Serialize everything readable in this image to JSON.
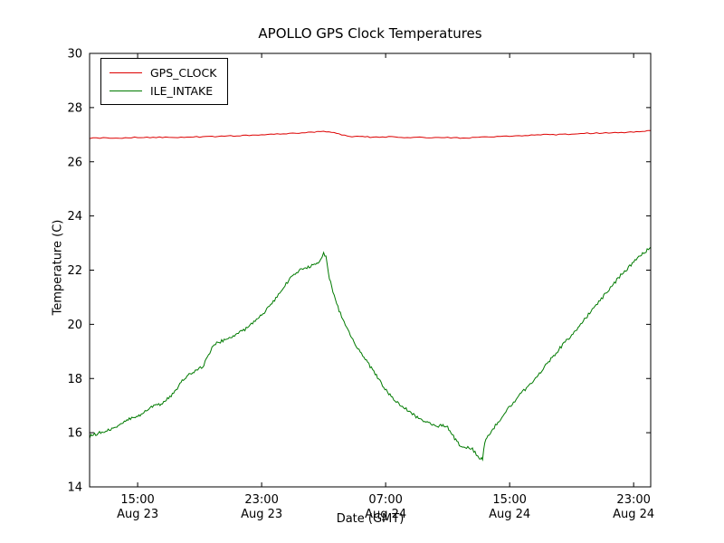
{
  "title": "APOLLO GPS Clock Temperatures",
  "chart_data": {
    "type": "line",
    "title": "APOLLO GPS Clock Temperatures",
    "xlabel": "Date (GMT)",
    "ylabel": "Temperature (C)",
    "ylim": [
      14,
      30
    ],
    "xlim_hours": [
      11.9,
      48.1
    ],
    "x_unit": "hours since Aug 23 00:00 GMT",
    "grid": false,
    "legend_position": "upper left",
    "y_ticks": [
      14,
      16,
      18,
      20,
      22,
      24,
      26,
      28,
      30
    ],
    "x_ticks": [
      {
        "hours": 15,
        "line1": "15:00",
        "line2": "Aug 23"
      },
      {
        "hours": 23,
        "line1": "23:00",
        "line2": "Aug 23"
      },
      {
        "hours": 31,
        "line1": "07:00",
        "line2": "Aug 24"
      },
      {
        "hours": 39,
        "line1": "15:00",
        "line2": "Aug 24"
      },
      {
        "hours": 47,
        "line1": "23:00",
        "line2": "Aug 24"
      }
    ],
    "noise_amplitude": [
      0.018,
      0.06
    ],
    "series": [
      {
        "name": "GPS_CLOCK",
        "color": "#dd0000",
        "points": [
          [
            11.9,
            26.87
          ],
          [
            13,
            26.88
          ],
          [
            14,
            26.88
          ],
          [
            15,
            26.9
          ],
          [
            16,
            26.9
          ],
          [
            17,
            26.9
          ],
          [
            18,
            26.9
          ],
          [
            19,
            26.92
          ],
          [
            20,
            26.93
          ],
          [
            21,
            26.95
          ],
          [
            22,
            26.97
          ],
          [
            23,
            27.0
          ],
          [
            24,
            27.02
          ],
          [
            25,
            27.05
          ],
          [
            26,
            27.08
          ],
          [
            27,
            27.12
          ],
          [
            27.5,
            27.1
          ],
          [
            28,
            27.02
          ],
          [
            28.5,
            26.95
          ],
          [
            29,
            26.93
          ],
          [
            29.5,
            26.95
          ],
          [
            30,
            26.9
          ],
          [
            31,
            26.92
          ],
          [
            32,
            26.9
          ],
          [
            33,
            26.9
          ],
          [
            34,
            26.88
          ],
          [
            35,
            26.9
          ],
          [
            36,
            26.87
          ],
          [
            37,
            26.9
          ],
          [
            38,
            26.92
          ],
          [
            39,
            26.95
          ],
          [
            40,
            26.97
          ],
          [
            41,
            27.0
          ],
          [
            42,
            27.0
          ],
          [
            43,
            27.02
          ],
          [
            44,
            27.05
          ],
          [
            45,
            27.06
          ],
          [
            46,
            27.08
          ],
          [
            47,
            27.1
          ],
          [
            48.1,
            27.15
          ]
        ]
      },
      {
        "name": "ILE_INTAKE",
        "color": "#007a00",
        "points": [
          [
            11.9,
            15.85
          ],
          [
            12.3,
            15.95
          ],
          [
            12.7,
            16.05
          ],
          [
            13.1,
            16.1
          ],
          [
            13.5,
            16.2
          ],
          [
            13.9,
            16.3
          ],
          [
            14.3,
            16.45
          ],
          [
            14.7,
            16.55
          ],
          [
            15.0,
            16.6
          ],
          [
            15.4,
            16.75
          ],
          [
            15.8,
            16.9
          ],
          [
            16.2,
            17.0
          ],
          [
            16.6,
            17.1
          ],
          [
            17.0,
            17.3
          ],
          [
            17.4,
            17.5
          ],
          [
            17.8,
            17.85
          ],
          [
            18.1,
            18.05
          ],
          [
            18.4,
            18.2
          ],
          [
            18.8,
            18.3
          ],
          [
            19.2,
            18.45
          ],
          [
            19.5,
            18.75
          ],
          [
            19.8,
            19.15
          ],
          [
            20.1,
            19.3
          ],
          [
            20.5,
            19.4
          ],
          [
            21.0,
            19.5
          ],
          [
            21.5,
            19.65
          ],
          [
            22.0,
            19.85
          ],
          [
            22.5,
            20.1
          ],
          [
            23.0,
            20.35
          ],
          [
            23.5,
            20.65
          ],
          [
            24.0,
            21.0
          ],
          [
            24.5,
            21.45
          ],
          [
            25.0,
            21.8
          ],
          [
            25.5,
            22.0
          ],
          [
            26.0,
            22.1
          ],
          [
            26.4,
            22.2
          ],
          [
            26.8,
            22.35
          ],
          [
            27.0,
            22.6
          ],
          [
            27.15,
            22.5
          ],
          [
            27.3,
            21.9
          ],
          [
            27.6,
            21.2
          ],
          [
            28.0,
            20.5
          ],
          [
            28.4,
            19.95
          ],
          [
            28.8,
            19.5
          ],
          [
            29.2,
            19.1
          ],
          [
            29.6,
            18.75
          ],
          [
            30.0,
            18.45
          ],
          [
            30.4,
            18.1
          ],
          [
            30.8,
            17.75
          ],
          [
            31.2,
            17.45
          ],
          [
            31.6,
            17.2
          ],
          [
            32.0,
            17.0
          ],
          [
            32.4,
            16.85
          ],
          [
            32.8,
            16.65
          ],
          [
            33.2,
            16.5
          ],
          [
            33.6,
            16.4
          ],
          [
            34.0,
            16.3
          ],
          [
            34.4,
            16.25
          ],
          [
            34.7,
            16.3
          ],
          [
            35.0,
            16.2
          ],
          [
            35.3,
            15.95
          ],
          [
            35.6,
            15.65
          ],
          [
            35.9,
            15.5
          ],
          [
            36.3,
            15.45
          ],
          [
            36.6,
            15.4
          ],
          [
            36.85,
            15.2
          ],
          [
            37.05,
            15.0
          ],
          [
            37.25,
            15.05
          ],
          [
            37.4,
            15.6
          ],
          [
            37.6,
            15.9
          ],
          [
            38.0,
            16.2
          ],
          [
            38.5,
            16.55
          ],
          [
            39.0,
            16.95
          ],
          [
            39.5,
            17.3
          ],
          [
            40.0,
            17.6
          ],
          [
            40.5,
            17.9
          ],
          [
            41.0,
            18.25
          ],
          [
            41.5,
            18.6
          ],
          [
            42.0,
            18.95
          ],
          [
            42.5,
            19.3
          ],
          [
            43.0,
            19.6
          ],
          [
            43.5,
            19.95
          ],
          [
            44.0,
            20.3
          ],
          [
            44.5,
            20.65
          ],
          [
            45.0,
            21.0
          ],
          [
            45.5,
            21.35
          ],
          [
            46.0,
            21.7
          ],
          [
            46.5,
            22.0
          ],
          [
            47.0,
            22.3
          ],
          [
            47.5,
            22.55
          ],
          [
            48.1,
            22.85
          ]
        ]
      }
    ]
  }
}
